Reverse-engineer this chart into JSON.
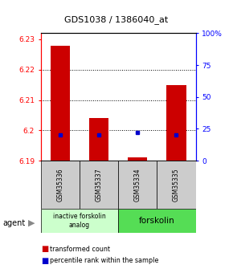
{
  "title": "GDS1038 / 1386040_at",
  "samples": [
    "GSM35336",
    "GSM35337",
    "GSM35334",
    "GSM35335"
  ],
  "bar_values": [
    6.228,
    6.204,
    6.191,
    6.215
  ],
  "bar_baseline": 6.19,
  "blue_values": [
    20.0,
    20.0,
    22.0,
    20.0
  ],
  "ylim": [
    6.19,
    6.232
  ],
  "yticks": [
    6.19,
    6.2,
    6.21,
    6.22,
    6.23
  ],
  "ytick_labels": [
    "6.19",
    "6.2",
    "6.21",
    "6.22",
    "6.23"
  ],
  "right_yticks": [
    0,
    25,
    50,
    75,
    100
  ],
  "right_ytick_labels": [
    "0",
    "25",
    "50",
    "75",
    "100%"
  ],
  "bar_color": "#cc0000",
  "blue_color": "#0000cc",
  "group1_label": "inactive forskolin\nanalog",
  "group2_label": "forskolin",
  "group1_samples": [
    0,
    1
  ],
  "group2_samples": [
    2,
    3
  ],
  "group1_bg": "#ccffcc",
  "group2_bg": "#55dd55",
  "sample_bg": "#cccccc",
  "legend_red": "transformed count",
  "legend_blue": "percentile rank within the sample",
  "agent_label": "agent",
  "bar_width": 0.5
}
